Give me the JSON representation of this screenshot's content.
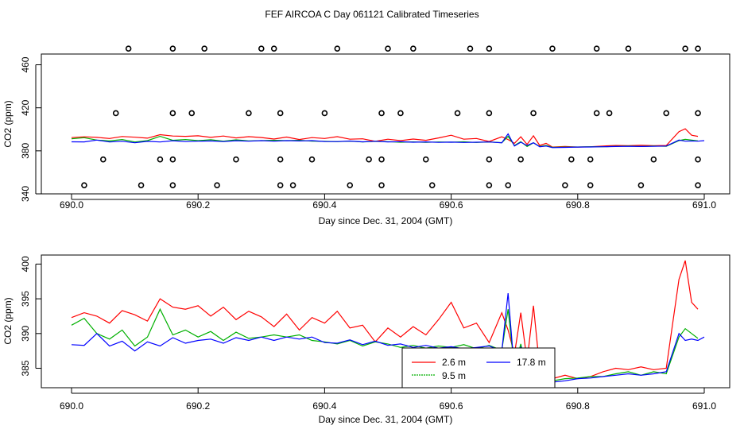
{
  "page_title": "FEF AIRCOA C  Day 061121  Calibrated Timeseries",
  "chart_data": [
    {
      "type": "scatter+line",
      "id": "top",
      "xlabel": "Day since Dec. 31, 2004 (GMT)",
      "ylabel": "CO2 (ppm)",
      "xlim": [
        690.0,
        691.0
      ],
      "ylim": [
        340,
        470
      ],
      "xticks": [
        690.0,
        690.2,
        690.4,
        690.6,
        690.8,
        691.0
      ],
      "yticks": [
        340,
        380,
        420,
        460
      ],
      "x_tick_labels": [
        "690.0",
        "690.2",
        "690.4",
        "690.6",
        "690.8",
        "691.0"
      ],
      "y_tick_labels": [
        "340",
        "380",
        "420",
        "460"
      ],
      "calibration_points": {
        "marker": "open-circle",
        "levels": [
          {
            "y": 475,
            "x": [
              690.09,
              690.16,
              690.21,
              690.3,
              690.32,
              690.42,
              690.5,
              690.54,
              690.63,
              690.66,
              690.76,
              690.83,
              690.88,
              690.97,
              690.99
            ]
          },
          {
            "y": 415,
            "x": [
              690.07,
              690.16,
              690.19,
              690.28,
              690.33,
              690.4,
              690.49,
              690.52,
              690.61,
              690.66,
              690.73,
              690.83,
              690.85,
              690.94,
              690.99
            ]
          },
          {
            "y": 372,
            "x": [
              690.05,
              690.14,
              690.16,
              690.26,
              690.33,
              690.38,
              690.47,
              690.49,
              690.56,
              690.66,
              690.71,
              690.79,
              690.82,
              690.92,
              690.99
            ]
          },
          {
            "y": 348,
            "x": [
              690.02,
              690.11,
              690.16,
              690.23,
              690.33,
              690.35,
              690.44,
              690.49,
              690.57,
              690.66,
              690.69,
              690.78,
              690.82,
              690.9,
              690.99
            ]
          }
        ]
      },
      "series_ref": "shared_series"
    },
    {
      "type": "line",
      "id": "bottom",
      "xlabel": "Day since Dec. 31, 2004 (GMT)",
      "ylabel": "CO2 (ppm)",
      "xlim": [
        690.0,
        691.0
      ],
      "ylim": [
        382.2,
        401.3
      ],
      "xticks": [
        690.0,
        690.2,
        690.4,
        690.6,
        690.8,
        691.0
      ],
      "yticks": [
        385,
        390,
        395,
        400
      ],
      "x_tick_labels": [
        "690.0",
        "690.2",
        "690.4",
        "690.6",
        "690.8",
        "691.0"
      ],
      "y_tick_labels": [
        "385",
        "390",
        "395",
        "400"
      ],
      "legend": {
        "position": "bottom-center",
        "entries": [
          "2.6 m",
          "9.5 m",
          "17.8 m"
        ]
      },
      "series_ref": "shared_series"
    }
  ],
  "shared_series": [
    {
      "name": "2.6 m",
      "color": "#ff0000",
      "x": [
        690.0,
        690.02,
        690.04,
        690.06,
        690.08,
        690.1,
        690.12,
        690.14,
        690.16,
        690.18,
        690.2,
        690.22,
        690.24,
        690.26,
        690.28,
        690.3,
        690.32,
        690.34,
        690.36,
        690.38,
        690.4,
        690.42,
        690.44,
        690.46,
        690.48,
        690.5,
        690.52,
        690.54,
        690.56,
        690.58,
        690.6,
        690.62,
        690.64,
        690.66,
        690.68,
        690.69,
        690.7,
        690.71,
        690.72,
        690.73,
        690.74,
        690.75,
        690.76,
        690.78,
        690.8,
        690.82,
        690.84,
        690.86,
        690.88,
        690.9,
        690.92,
        690.94,
        690.96,
        690.97,
        690.98,
        690.99
      ],
      "y": [
        392.3,
        393.0,
        392.5,
        391.5,
        393.3,
        392.7,
        391.8,
        395.0,
        393.8,
        393.5,
        394.0,
        392.5,
        393.8,
        392.0,
        393.2,
        392.4,
        391.0,
        392.8,
        390.5,
        392.3,
        391.5,
        393.2,
        390.8,
        391.2,
        388.8,
        390.8,
        389.5,
        391.0,
        389.8,
        392.0,
        394.5,
        390.8,
        391.5,
        388.7,
        393.0,
        390.5,
        387.0,
        393.0,
        386.0,
        394.0,
        385.0,
        387.0,
        383.5,
        384.0,
        383.5,
        383.8,
        384.5,
        385.0,
        384.8,
        385.2,
        384.8,
        385.0,
        397.8,
        400.5,
        394.5,
        393.5
      ]
    },
    {
      "name": "9.5 m",
      "color": "#00b000",
      "x": [
        690.0,
        690.02,
        690.04,
        690.06,
        690.08,
        690.1,
        690.12,
        690.14,
        690.16,
        690.18,
        690.2,
        690.22,
        690.24,
        690.26,
        690.28,
        690.3,
        690.32,
        690.34,
        690.36,
        690.38,
        690.4,
        690.42,
        690.44,
        690.46,
        690.48,
        690.5,
        690.52,
        690.54,
        690.56,
        690.58,
        690.6,
        690.62,
        690.64,
        690.66,
        690.68,
        690.69,
        690.7,
        690.71,
        690.72,
        690.73,
        690.74,
        690.75,
        690.76,
        690.78,
        690.8,
        690.82,
        690.84,
        690.86,
        690.88,
        690.9,
        690.92,
        690.94,
        690.96,
        690.97,
        690.98,
        690.99
      ],
      "y": [
        391.2,
        392.2,
        390.0,
        389.2,
        390.5,
        388.2,
        389.5,
        393.5,
        389.8,
        390.5,
        389.5,
        390.3,
        389.0,
        390.2,
        389.3,
        389.5,
        389.8,
        389.5,
        389.8,
        389.0,
        388.8,
        388.5,
        389.0,
        388.2,
        388.8,
        388.5,
        388.0,
        388.3,
        387.9,
        388.2,
        388.0,
        388.4,
        387.8,
        388.3,
        387.6,
        393.5,
        385.0,
        388.5,
        384.0,
        387.5,
        384.0,
        385.0,
        383.2,
        383.5,
        383.6,
        383.8,
        383.8,
        384.2,
        384.5,
        384.0,
        384.5,
        384.2,
        389.5,
        390.7,
        390.0,
        389.3
      ]
    },
    {
      "name": "17.8 m",
      "color": "#0000ff",
      "x": [
        690.0,
        690.02,
        690.04,
        690.06,
        690.08,
        690.1,
        690.12,
        690.14,
        690.16,
        690.18,
        690.2,
        690.22,
        690.24,
        690.26,
        690.28,
        690.3,
        690.32,
        690.34,
        690.36,
        690.38,
        690.4,
        690.42,
        690.44,
        690.46,
        690.48,
        690.5,
        690.52,
        690.54,
        690.56,
        690.58,
        690.6,
        690.62,
        690.64,
        690.66,
        690.68,
        690.69,
        690.7,
        690.71,
        690.72,
        690.73,
        690.74,
        690.75,
        690.76,
        690.78,
        690.8,
        690.82,
        690.84,
        690.86,
        690.88,
        690.9,
        690.92,
        690.94,
        690.96,
        690.97,
        690.98,
        690.99,
        691.0
      ],
      "y": [
        388.4,
        388.3,
        390.0,
        388.2,
        388.9,
        387.5,
        388.8,
        388.2,
        389.4,
        388.6,
        389.0,
        389.2,
        388.6,
        389.4,
        389.0,
        389.5,
        389.0,
        389.5,
        389.2,
        389.5,
        388.7,
        388.6,
        389.1,
        388.4,
        388.9,
        388.3,
        388.5,
        388.0,
        388.3,
        387.9,
        388.1,
        387.8,
        388.0,
        388.2,
        387.5,
        395.8,
        384.5,
        388.0,
        385.0,
        387.5,
        383.8,
        384.5,
        383.0,
        383.2,
        383.5,
        383.6,
        383.8,
        384.0,
        384.2,
        384.0,
        384.2,
        384.5,
        390.0,
        389.0,
        389.2,
        389.0,
        389.5
      ]
    }
  ]
}
